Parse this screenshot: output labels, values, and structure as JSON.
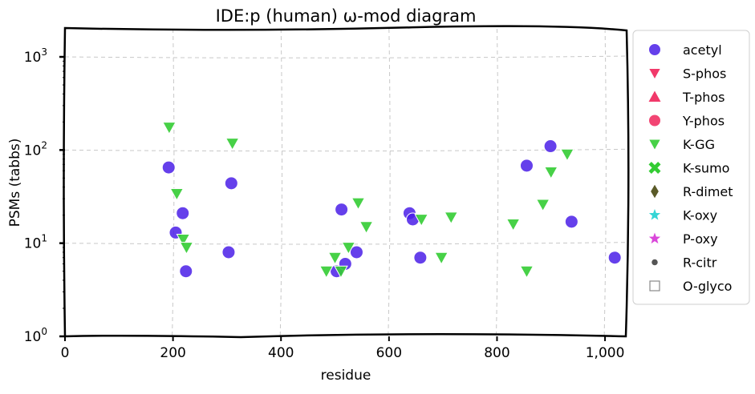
{
  "chart_data": {
    "type": "scatter",
    "title": "IDE:p (human) ω-mod diagram",
    "xlabel": "residue",
    "ylabel": "PSMs (tabbs)",
    "xlim": [
      0,
      1040
    ],
    "ylim": [
      1,
      2000
    ],
    "yscale": "log",
    "x_ticks": [
      0,
      200,
      400,
      600,
      800,
      1000
    ],
    "x_tick_labels": [
      "0",
      "200",
      "400",
      "600",
      "800",
      "1,000"
    ],
    "y_ticks": [
      1,
      10,
      100,
      1000
    ],
    "y_tick_labels": [
      "10",
      "10",
      "10",
      "10"
    ],
    "y_tick_exponents": [
      "0",
      "1",
      "2",
      "3"
    ],
    "grid": true,
    "legend_position": "outside-right",
    "series": [
      {
        "name": "acetyl",
        "marker": "circle",
        "color": "#4a1ee8",
        "points": [
          [
            192,
            65
          ],
          [
            205,
            13
          ],
          [
            218,
            21
          ],
          [
            224,
            5
          ],
          [
            303,
            8
          ],
          [
            308,
            44
          ],
          [
            503,
            5
          ],
          [
            512,
            23
          ],
          [
            519,
            6
          ],
          [
            540,
            8
          ],
          [
            638,
            21
          ],
          [
            644,
            18
          ],
          [
            658,
            7
          ],
          [
            855,
            68
          ],
          [
            899,
            110
          ],
          [
            938,
            17
          ],
          [
            1018,
            7
          ]
        ]
      },
      {
        "name": "S-phos",
        "marker": "triangle-down",
        "color": "#f0245a",
        "points": []
      },
      {
        "name": "T-phos",
        "marker": "triangle-up",
        "color": "#f0245a",
        "points": []
      },
      {
        "name": "Y-phos",
        "marker": "circle",
        "color": "#f0245a",
        "points": []
      },
      {
        "name": "K-GG",
        "marker": "triangle-down",
        "color": "#33cc33",
        "points": [
          [
            193,
            175
          ],
          [
            207,
            34
          ],
          [
            219,
            11
          ],
          [
            225,
            9
          ],
          [
            310,
            118
          ],
          [
            484,
            5
          ],
          [
            500,
            7
          ],
          [
            511,
            5
          ],
          [
            525,
            9
          ],
          [
            543,
            27
          ],
          [
            558,
            15
          ],
          [
            660,
            18
          ],
          [
            715,
            19
          ],
          [
            697,
            7
          ],
          [
            830,
            16
          ],
          [
            855,
            5
          ],
          [
            885,
            26
          ],
          [
            900,
            58
          ],
          [
            930,
            90
          ]
        ]
      },
      {
        "name": "K-sumo",
        "marker": "x",
        "color": "#33cc33",
        "points": []
      },
      {
        "name": "R-dimet",
        "marker": "diamond",
        "color": "#5a5a28",
        "points": []
      },
      {
        "name": "K-oxy",
        "marker": "star",
        "color": "#1fd0d0",
        "points": []
      },
      {
        "name": "P-oxy",
        "marker": "star",
        "color": "#d633d6",
        "points": []
      },
      {
        "name": "R-citr",
        "marker": "small-circle",
        "color": "#555555",
        "points": []
      },
      {
        "name": "O-glyco",
        "marker": "square-open",
        "color": "#888888",
        "points": []
      }
    ]
  }
}
